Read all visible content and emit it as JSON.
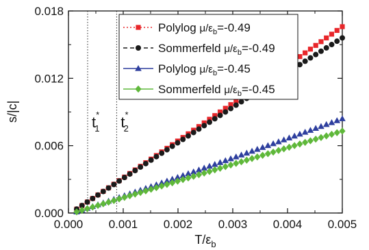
{
  "chart_data": {
    "type": "scatter",
    "title": "",
    "xlabel": "T/ε",
    "xlabel_sub": "b",
    "ylabel": "s/|c|",
    "xlim": [
      0.0,
      0.005
    ],
    "ylim": [
      0.0,
      0.018
    ],
    "x_ticks": [
      0.0,
      0.001,
      0.002,
      0.003,
      0.004,
      0.005
    ],
    "x_tick_labels": [
      "0.000",
      "0.001",
      "0.002",
      "0.003",
      "0.004",
      "0.005"
    ],
    "y_ticks": [
      0.0,
      0.006,
      0.012,
      0.018
    ],
    "y_tick_labels": [
      "0.000",
      "0.006",
      "0.012",
      "0.018"
    ],
    "grid": false,
    "legend_position": "top-right",
    "annotations": [
      {
        "x": 0.00035,
        "base": "t",
        "sup": "*",
        "sub": "1"
      },
      {
        "x": 0.00088,
        "base": "t",
        "sup": "*",
        "sub": "2"
      }
    ],
    "series": [
      {
        "name": "Polylog",
        "mu_label": "μ/ε",
        "mu_sub": "b",
        "mu_value": "=-0.49",
        "color": "#e8262a",
        "marker": "square",
        "line": "dotted",
        "x_start": 0.00015,
        "x_end": 0.005,
        "count": 51,
        "y_start": 0.00035,
        "y_end": 0.0166,
        "curve": 0.03
      },
      {
        "name": "Sommerfeld",
        "mu_label": "μ/ε",
        "mu_sub": "b",
        "mu_value": "=-0.49",
        "color": "#1a1a1a",
        "marker": "circle",
        "line": "dashed",
        "x_start": 0.00015,
        "x_end": 0.005,
        "count": 51,
        "y_start": 0.00035,
        "y_end": 0.0156,
        "curve": -0.03
      },
      {
        "name": "Polylog",
        "mu_label": "μ/ε",
        "mu_sub": "b",
        "mu_value": "=-0.45",
        "color": "#2e3f9e",
        "marker": "triangle",
        "line": "solid",
        "x_start": 0.00015,
        "x_end": 0.005,
        "count": 51,
        "y_start": 0.0001,
        "y_end": 0.0084,
        "curve": 0.04
      },
      {
        "name": "Sommerfeld",
        "mu_label": "μ/ε",
        "mu_sub": "b",
        "mu_value": "=-0.45",
        "color": "#5fb83a",
        "marker": "diamond",
        "line": "solid",
        "x_start": 0.00015,
        "x_end": 0.005,
        "count": 51,
        "y_start": 0.0001,
        "y_end": 0.0073,
        "curve": 0.0
      }
    ]
  }
}
